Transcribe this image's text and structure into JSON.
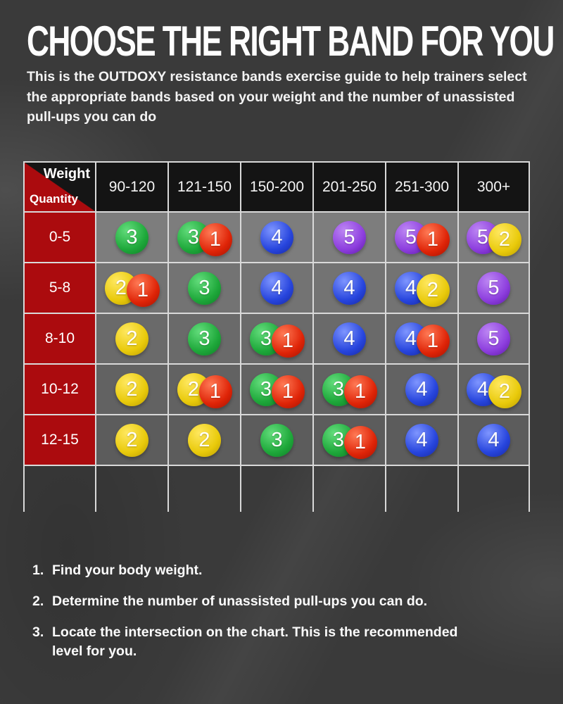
{
  "page": {
    "title": "CHOOSE THE RIGHT BAND FOR YOU",
    "subtitle": "This is the OUTDOXY resistance bands exercise guide to help trainers select the appropriate bands based on your weight and the number of unassisted pull-ups you can do"
  },
  "table": {
    "corner_top_label": "Weight",
    "corner_bottom_label": "Quantity",
    "weight_columns": [
      "90-120",
      "121-150",
      "150-200",
      "201-250",
      "251-300",
      "300+"
    ],
    "rows": [
      {
        "quantity": "0-5",
        "cells": [
          [
            {
              "level": "3",
              "color": "green"
            }
          ],
          [
            {
              "level": "3",
              "color": "green"
            },
            {
              "level": "1",
              "color": "red"
            }
          ],
          [
            {
              "level": "4",
              "color": "blue"
            }
          ],
          [
            {
              "level": "5",
              "color": "purple"
            }
          ],
          [
            {
              "level": "5",
              "color": "purple"
            },
            {
              "level": "1",
              "color": "red"
            }
          ],
          [
            {
              "level": "5",
              "color": "purple"
            },
            {
              "level": "2",
              "color": "yellow"
            }
          ]
        ]
      },
      {
        "quantity": "5-8",
        "cells": [
          [
            {
              "level": "2",
              "color": "yellow"
            },
            {
              "level": "1",
              "color": "red"
            }
          ],
          [
            {
              "level": "3",
              "color": "green"
            }
          ],
          [
            {
              "level": "4",
              "color": "blue"
            }
          ],
          [
            {
              "level": "4",
              "color": "blue"
            }
          ],
          [
            {
              "level": "4",
              "color": "blue"
            },
            {
              "level": "2",
              "color": "yellow"
            }
          ],
          [
            {
              "level": "5",
              "color": "purple"
            }
          ]
        ]
      },
      {
        "quantity": "8-10",
        "cells": [
          [
            {
              "level": "2",
              "color": "yellow"
            }
          ],
          [
            {
              "level": "3",
              "color": "green"
            }
          ],
          [
            {
              "level": "3",
              "color": "green"
            },
            {
              "level": "1",
              "color": "red"
            }
          ],
          [
            {
              "level": "4",
              "color": "blue"
            }
          ],
          [
            {
              "level": "4",
              "color": "blue"
            },
            {
              "level": "1",
              "color": "red"
            }
          ],
          [
            {
              "level": "5",
              "color": "purple"
            }
          ]
        ]
      },
      {
        "quantity": "10-12",
        "cells": [
          [
            {
              "level": "2",
              "color": "yellow"
            }
          ],
          [
            {
              "level": "2",
              "color": "yellow"
            },
            {
              "level": "1",
              "color": "red"
            }
          ],
          [
            {
              "level": "3",
              "color": "green"
            },
            {
              "level": "1",
              "color": "red"
            }
          ],
          [
            {
              "level": "3",
              "color": "green"
            },
            {
              "level": "1",
              "color": "red"
            }
          ],
          [
            {
              "level": "4",
              "color": "blue"
            }
          ],
          [
            {
              "level": "4",
              "color": "blue"
            },
            {
              "level": "2",
              "color": "yellow"
            }
          ]
        ]
      },
      {
        "quantity": "12-15",
        "cells": [
          [
            {
              "level": "2",
              "color": "yellow"
            }
          ],
          [
            {
              "level": "2",
              "color": "yellow"
            }
          ],
          [
            {
              "level": "3",
              "color": "green"
            }
          ],
          [
            {
              "level": "3",
              "color": "green"
            },
            {
              "level": "1",
              "color": "red"
            }
          ],
          [
            {
              "level": "4",
              "color": "blue"
            }
          ],
          [
            {
              "level": "4",
              "color": "blue"
            }
          ]
        ]
      }
    ]
  },
  "instructions": [
    {
      "num": "1.",
      "text": "Find your body weight."
    },
    {
      "num": "2.",
      "text": "Determine the number of unassisted pull-ups you can do."
    },
    {
      "num": "3.",
      "text": "Locate the intersection on the chart. This is the recommended level for you."
    }
  ],
  "colors": {
    "accent_red": "#AB0B0E",
    "header_black": "#141414",
    "grid_line": "#D9D9D9",
    "ball_green": "#1EA83A",
    "ball_red": "#DF2407",
    "ball_blue": "#2745DD",
    "ball_purple": "#8D3EDE",
    "ball_yellow": "#E9CA0B"
  },
  "chart_data": {
    "type": "table",
    "title": "CHOOSE THE RIGHT BAND FOR YOU",
    "x_header": "Weight",
    "y_header": "Quantity",
    "columns": [
      "90-120",
      "121-150",
      "150-200",
      "201-250",
      "251-300",
      "300+"
    ],
    "rows": [
      "0-5",
      "5-8",
      "8-10",
      "10-12",
      "12-15"
    ],
    "cells": [
      [
        [
          3
        ],
        [
          3,
          1
        ],
        [
          4
        ],
        [
          5
        ],
        [
          5,
          1
        ],
        [
          5,
          2
        ]
      ],
      [
        [
          2,
          1
        ],
        [
          3
        ],
        [
          4
        ],
        [
          4
        ],
        [
          4,
          2
        ],
        [
          5
        ]
      ],
      [
        [
          2
        ],
        [
          3
        ],
        [
          3,
          1
        ],
        [
          4
        ],
        [
          4,
          1
        ],
        [
          5
        ]
      ],
      [
        [
          2
        ],
        [
          2,
          1
        ],
        [
          3,
          1
        ],
        [
          3,
          1
        ],
        [
          4
        ],
        [
          4,
          2
        ]
      ],
      [
        [
          2
        ],
        [
          2
        ],
        [
          3
        ],
        [
          3,
          1
        ],
        [
          4
        ],
        [
          4
        ]
      ]
    ],
    "band_color_by_level": {
      "1": "red",
      "2": "yellow",
      "3": "green",
      "4": "blue",
      "5": "purple"
    }
  }
}
